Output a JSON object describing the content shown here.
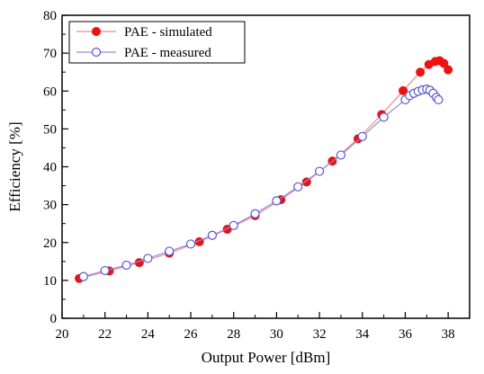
{
  "chart_data": {
    "type": "line",
    "xlabel": "Output Power [dBm]",
    "ylabel": "Efficiency [%]",
    "xlim": [
      20,
      39
    ],
    "ylim": [
      0,
      80
    ],
    "x_ticks": [
      20,
      22,
      24,
      26,
      28,
      30,
      32,
      34,
      36,
      38
    ],
    "y_ticks": [
      0,
      10,
      20,
      30,
      40,
      50,
      60,
      70,
      80
    ],
    "grid": false,
    "legend_position": "top-left",
    "series": [
      {
        "name": "PAE - simulated",
        "marker": "filled-circle",
        "color": "#ee1111",
        "line_color": "#f08a8a",
        "points": [
          [
            20.8,
            10.5
          ],
          [
            22.2,
            12.5
          ],
          [
            23.6,
            14.7
          ],
          [
            25.0,
            17.2
          ],
          [
            26.4,
            20.2
          ],
          [
            27.7,
            23.5
          ],
          [
            29.0,
            27.1
          ],
          [
            30.2,
            31.3
          ],
          [
            31.4,
            36.0
          ],
          [
            32.6,
            41.5
          ],
          [
            33.8,
            47.4
          ],
          [
            34.9,
            53.8
          ],
          [
            35.9,
            60.1
          ],
          [
            36.7,
            65.0
          ],
          [
            37.1,
            67.0
          ],
          [
            37.4,
            67.8
          ],
          [
            37.6,
            68.0
          ],
          [
            37.8,
            67.3
          ],
          [
            38.0,
            65.6
          ]
        ]
      },
      {
        "name": "PAE - measured",
        "marker": "hollow-circle",
        "color": "#5555dd",
        "line_color": "#8a8ae6",
        "points": [
          [
            21.0,
            11.0
          ],
          [
            22.0,
            12.6
          ],
          [
            23.0,
            14.0
          ],
          [
            24.0,
            15.8
          ],
          [
            25.0,
            17.7
          ],
          [
            26.0,
            19.6
          ],
          [
            27.0,
            21.9
          ],
          [
            28.0,
            24.5
          ],
          [
            29.0,
            27.6
          ],
          [
            30.0,
            31.0
          ],
          [
            31.0,
            34.7
          ],
          [
            32.0,
            38.8
          ],
          [
            33.0,
            43.1
          ],
          [
            34.0,
            48.0
          ],
          [
            35.0,
            53.1
          ],
          [
            36.0,
            57.7
          ],
          [
            36.2,
            58.8
          ],
          [
            36.4,
            59.4
          ],
          [
            36.6,
            59.9
          ],
          [
            36.8,
            60.3
          ],
          [
            37.0,
            60.5
          ],
          [
            37.15,
            60.2
          ],
          [
            37.3,
            59.4
          ],
          [
            37.45,
            58.3
          ],
          [
            37.55,
            57.7
          ]
        ]
      }
    ]
  }
}
